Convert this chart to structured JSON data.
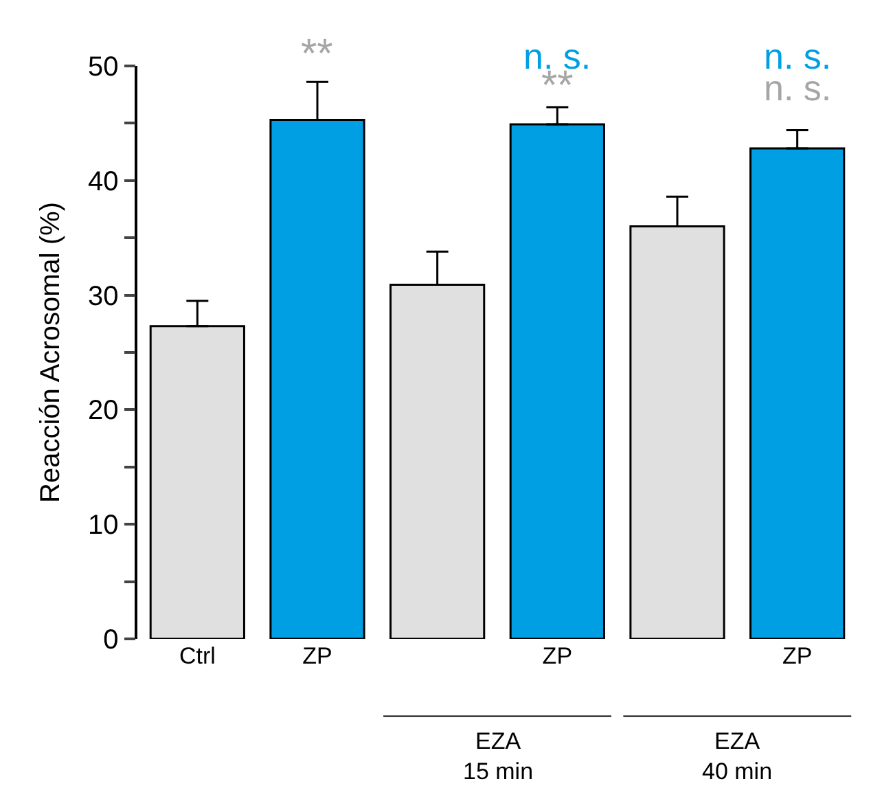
{
  "chart_data": {
    "type": "bar",
    "categories": [
      "Ctrl",
      "ZP",
      null,
      "ZP",
      null,
      "ZP"
    ],
    "values": [
      27.3,
      45.3,
      30.9,
      44.9,
      36.0,
      42.8
    ],
    "colors": [
      "#e0e0e0",
      "#009fe3",
      "#e0e0e0",
      "#009fe3",
      "#e0e0e0",
      "#009fe3"
    ],
    "errors": [
      [
        27.3,
        29.5
      ],
      [
        45.3,
        48.6
      ],
      [
        30.9,
        33.8
      ],
      [
        44.9,
        46.4
      ],
      [
        36.0,
        38.6
      ],
      [
        42.8,
        44.4
      ]
    ],
    "ylabel": "Reacción Acrosomal (%)",
    "ylim": [
      0,
      50
    ],
    "yticks": [
      0,
      {
        "value": 5,
        "label": null
      },
      10,
      {
        "value": 15,
        "label": null
      },
      20,
      {
        "value": 25,
        "label": null
      },
      30,
      {
        "value": 35,
        "label": null
      },
      40,
      {
        "value": 45,
        "label": null
      },
      50
    ],
    "annotations": [
      "**",
      "n. s.",
      "**",
      "n. s.",
      "n. s.",
      "EZA\n15 min",
      "EZA\n40 min"
    ],
    "legend": false
  }
}
